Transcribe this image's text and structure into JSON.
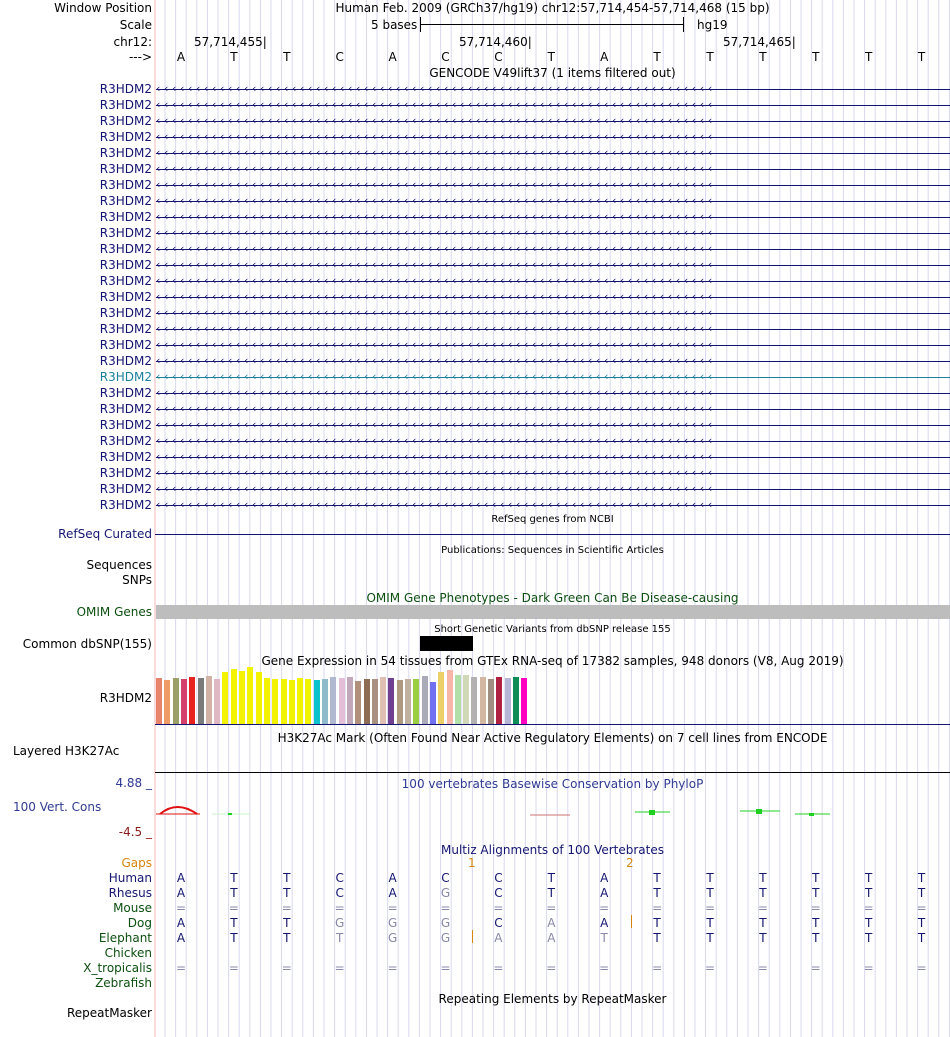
{
  "header": {
    "window_position_label": "Window Position",
    "window_position_text": "Human Feb. 2009 (GRCh37/hg19)   chr12:57,714,454-57,714,468 (15 bp)",
    "scale_label": "Scale",
    "scale_text": "5 bases",
    "scale_assembly": "hg19",
    "chrom_label": "chr12:",
    "strand_label": "--->",
    "coords": [
      "57,714,455",
      "57,714,460",
      "57,714,465"
    ],
    "sequence": [
      "A",
      "T",
      "T",
      "C",
      "A",
      "C",
      "C",
      "T",
      "A",
      "T",
      "T",
      "T",
      "T",
      "T",
      "T"
    ]
  },
  "gencode": {
    "title": "GENCODE V49lift37 (1 items filtered out)",
    "gene_label": "R3HDM2",
    "row_count": 27,
    "highlight_row": 18
  },
  "refseq": {
    "label": "RefSeq Curated",
    "title": "RefSeq genes from NCBI"
  },
  "publications": {
    "title": "Publications: Sequences in Scientific Articles",
    "label_sequences": "Sequences",
    "label_snps": "SNPs"
  },
  "omim": {
    "label": "OMIM Genes",
    "title": "OMIM Gene Phenotypes - Dark Green Can Be Disease-causing"
  },
  "dbsnp": {
    "label": "Common dbSNP(155)",
    "title": "Short Genetic Variants from dbSNP release 155"
  },
  "gtex": {
    "title": "Gene Expression in 54 tissues from GTEx RNA-seq of 17382 samples, 948 donors (V8, Aug 2019)",
    "label": "R3HDM2",
    "tissue_count": 54
  },
  "h3k27ac": {
    "label": "Layered H3K27Ac",
    "title": "H3K27Ac Mark (Often Found Near Active Regulatory Elements) on 7 cell lines from ENCODE"
  },
  "phylop": {
    "label": "100 Vert. Cons",
    "title": "100 vertebrates Basewise Conservation by PhyloP",
    "max_label": "4.88 _",
    "min_label": "-4.5 _"
  },
  "multiz": {
    "title": "Multiz Alignments of 100 Vertebrates",
    "gaps_label": "Gaps",
    "gap_markers": [
      "1",
      "2"
    ],
    "species": [
      {
        "name": "Human",
        "seq": [
          "A",
          "T",
          "T",
          "C",
          "A",
          "C",
          "C",
          "T",
          "A",
          "T",
          "T",
          "T",
          "T",
          "T",
          "T"
        ]
      },
      {
        "name": "Rhesus",
        "seq": [
          "A",
          "T",
          "T",
          "C",
          "A",
          "G",
          "C",
          "T",
          "A",
          "T",
          "T",
          "T",
          "T",
          "T",
          "T"
        ]
      },
      {
        "name": "Mouse",
        "seq": [
          "=",
          "=",
          "=",
          "=",
          "=",
          "=",
          "=",
          "=",
          "=",
          "=",
          "=",
          "=",
          "=",
          "=",
          "="
        ]
      },
      {
        "name": "Dog",
        "seq": [
          "A",
          "T",
          "T",
          "G",
          "G",
          "G",
          "C",
          "A",
          "A",
          "T",
          "T",
          "T",
          "T",
          "T",
          "T"
        ]
      },
      {
        "name": "Elephant",
        "seq": [
          "A",
          "T",
          "T",
          "T",
          "G",
          "G",
          "A",
          "A",
          "T",
          "T",
          "T",
          "T",
          "T",
          "T",
          "T"
        ]
      },
      {
        "name": "Chicken",
        "seq": [
          "",
          "",
          "",
          "",
          "",
          "",
          "",
          "",
          "",
          "",
          "",
          "",
          "",
          "",
          ""
        ]
      },
      {
        "name": "X_tropicalis",
        "seq": [
          "=",
          "=",
          "=",
          "=",
          "=",
          "=",
          "=",
          "=",
          "=",
          "=",
          "=",
          "=",
          "=",
          "=",
          "="
        ]
      },
      {
        "name": "Zebrafish",
        "seq": [
          "",
          "",
          "",
          "",
          "",
          "",
          "",
          "",
          "",
          "",
          "",
          "",
          "",
          "",
          ""
        ]
      }
    ]
  },
  "repeatmasker": {
    "label": "RepeatMasker",
    "title": "Repeating Elements by RepeatMasker"
  },
  "colors": {
    "navy": "#141570",
    "omim_green": "#0c4f10",
    "gaps_orange": "#d5860e",
    "highlight_teal": "#1a7f9a",
    "omim_bar": "#bdbdbd",
    "phylop_max": "#2f3a92",
    "phylop_min": "#8b1a1a"
  }
}
